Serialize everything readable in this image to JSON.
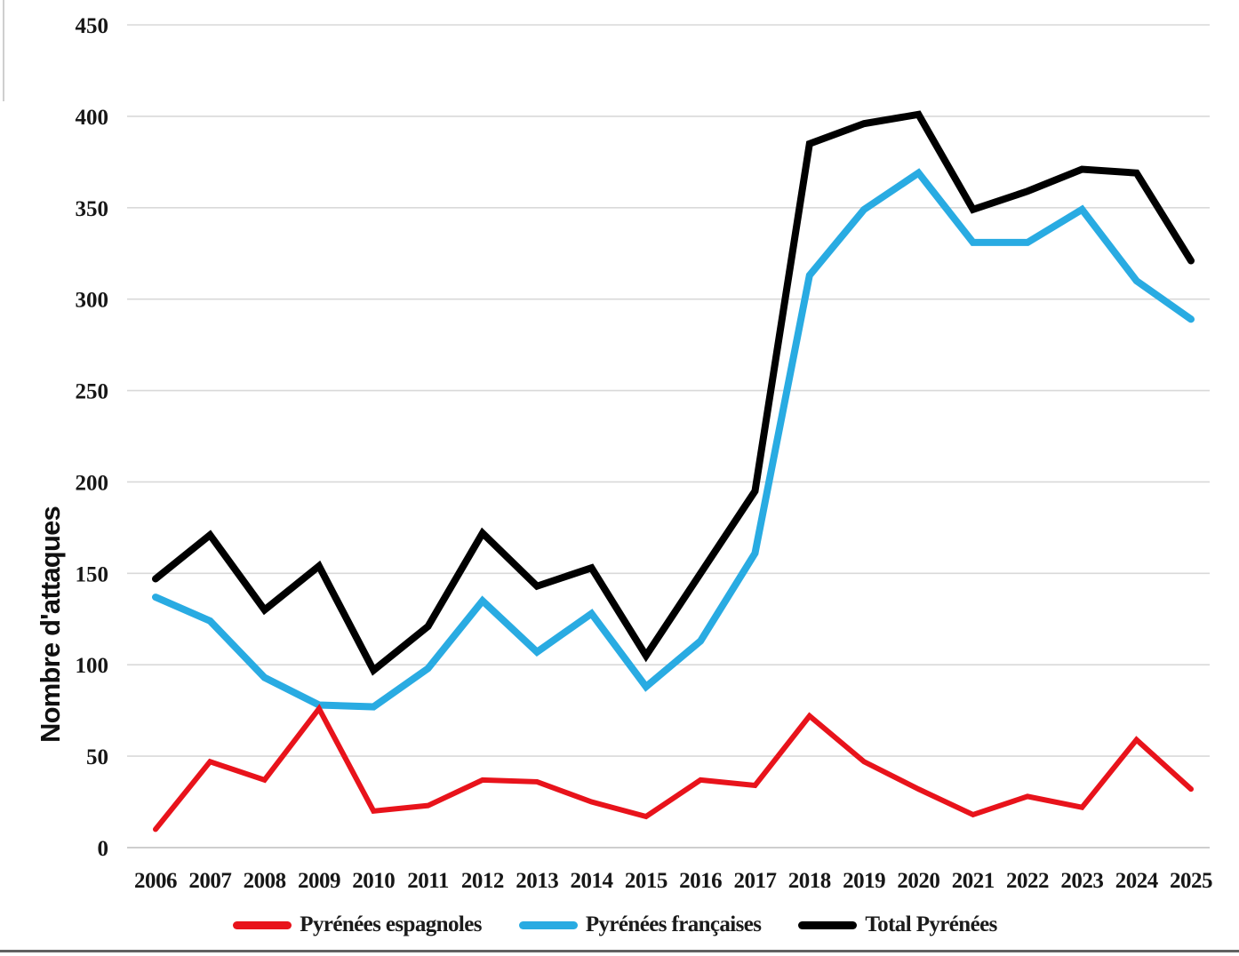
{
  "chart_data": {
    "type": "line",
    "title": "",
    "xlabel": "",
    "ylabel": "Nombre d'attaques",
    "ylim": [
      0,
      450
    ],
    "ytick_step": 50,
    "grid": true,
    "legend_position": "bottom",
    "categories": [
      "2006",
      "2007",
      "2008",
      "2009",
      "2010",
      "2011",
      "2012",
      "2013",
      "2014",
      "2015",
      "2016",
      "2017",
      "2018",
      "2019",
      "2020",
      "2021",
      "2022",
      "2023",
      "2024",
      "2025"
    ],
    "series": [
      {
        "name": "Pyrénées espagnoles",
        "color": "#e8131b",
        "stroke_width": 6,
        "values": [
          10,
          47,
          37,
          76,
          20,
          23,
          37,
          36,
          25,
          17,
          37,
          34,
          72,
          47,
          32,
          18,
          28,
          22,
          59,
          32
        ]
      },
      {
        "name": "Pyrénées françaises",
        "color": "#29abe2",
        "stroke_width": 8,
        "values": [
          137,
          124,
          93,
          78,
          77,
          98,
          135,
          107,
          128,
          88,
          113,
          161,
          313,
          349,
          369,
          331,
          331,
          349,
          310,
          289
        ]
      },
      {
        "name": "Total Pyrénées",
        "color": "#000000",
        "stroke_width": 8,
        "values": [
          147,
          171,
          130,
          154,
          97,
          121,
          172,
          143,
          153,
          105,
          150,
          195,
          385,
          396,
          401,
          349,
          359,
          371,
          369,
          321
        ]
      }
    ]
  },
  "colors": {
    "gridline": "#d9d9d9",
    "baseline": "#bdbdbd",
    "tick_text": "#171717"
  }
}
